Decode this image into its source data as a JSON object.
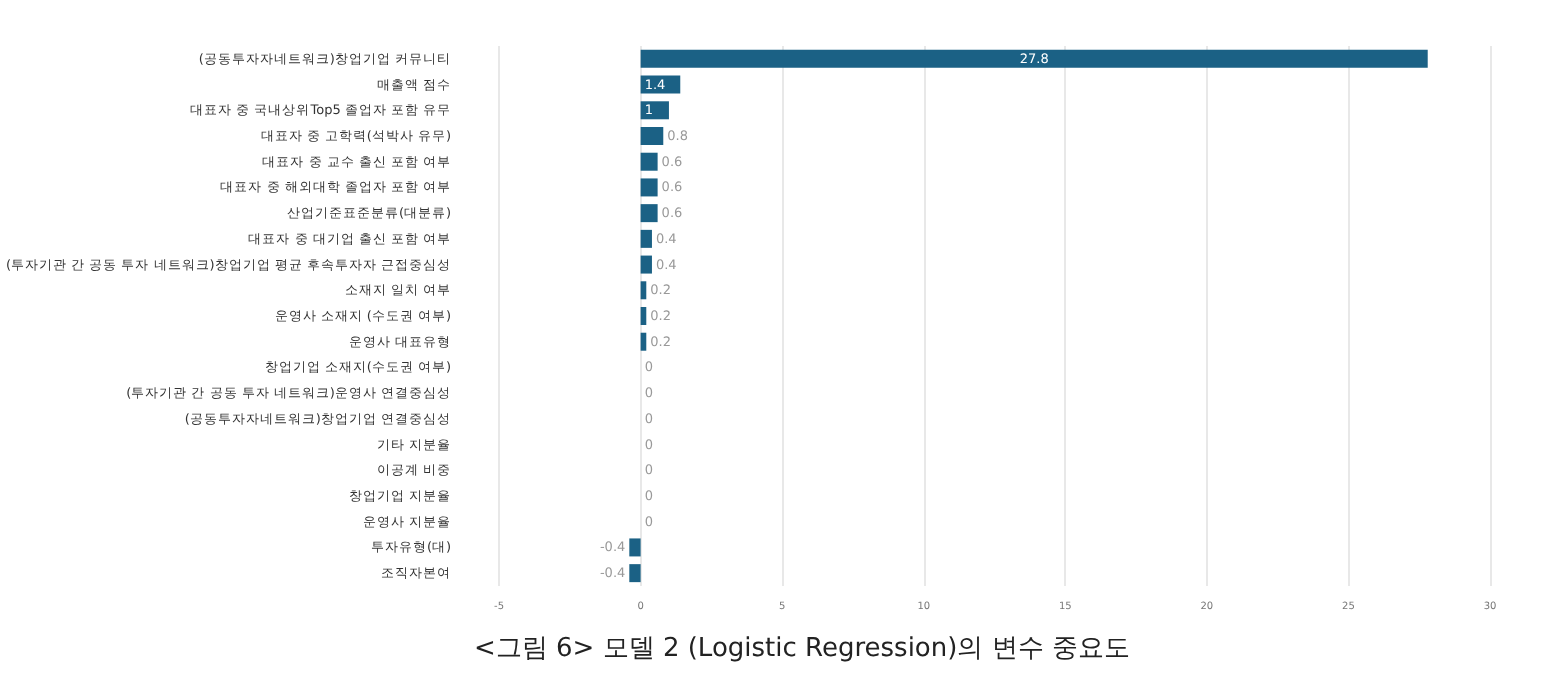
{
  "chart_data": {
    "type": "bar",
    "orientation": "horizontal",
    "title": "<그림 6> 모델 2 (Logistic Regression)의 변수 중요도",
    "categories": [
      "(공동투자자네트워크)창업기업 커뮤니티",
      "매출액 점수",
      "대표자 중 국내상위Top5 졸업자 포함 유무",
      "대표자 중 고학력(석박사 유무)",
      "대표자 중 교수 출신 포함 여부",
      "대표자 중 해외대학 졸업자 포함 여부",
      "산업기준표준분류(대분류)",
      "대표자 중 대기업 출신 포함 여부",
      "(투자기관 간 공동 투자 네트워크)창업기업 평균 후속투자자 근접중심성",
      "소재지 일치 여부",
      "운영사 소재지 (수도권 여부)",
      "운영사 대표유형",
      "창업기업 소재지(수도권 여부)",
      "(투자기관 간 공동 투자 네트워크)운영사 연결중심성",
      "(공동투자자네트워크)창업기업 연결중심성",
      "기타 지분율",
      "이공계 비중",
      "창업기업 지분율",
      "운영사 지분율",
      "투자유형(대)",
      "조직자본여"
    ],
    "values": [
      27.8,
      1.4,
      1,
      0.8,
      0.6,
      0.6,
      0.6,
      0.4,
      0.4,
      0.2,
      0.2,
      0.2,
      0,
      0,
      0,
      0,
      0,
      0,
      0,
      -0.4,
      -0.4
    ],
    "color": "#1b6185",
    "data_labels": true,
    "grid": "x",
    "xlim": [
      -5,
      30
    ],
    "xticks": [
      -5,
      0,
      5,
      10,
      15,
      20,
      25,
      30
    ]
  }
}
